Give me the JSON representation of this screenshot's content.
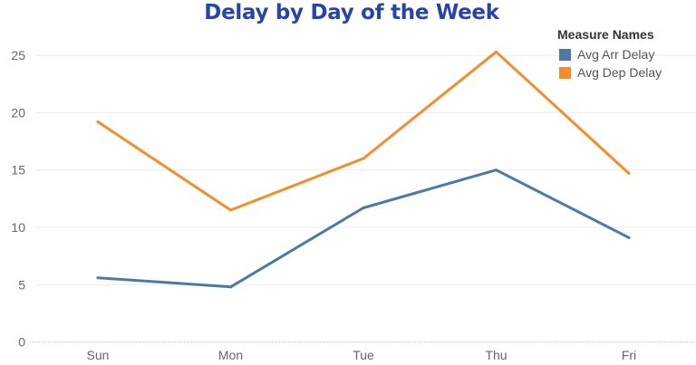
{
  "chart_data": {
    "type": "line",
    "title": "Delay by Day of the Week",
    "xlabel": "",
    "ylabel": "",
    "categories": [
      "Sun",
      "Mon",
      "Tue",
      "Thu",
      "Fri"
    ],
    "ylim": [
      0,
      27
    ],
    "yticks": [
      0,
      5,
      10,
      15,
      20,
      25
    ],
    "grid": true,
    "legend": {
      "title": "Measure Names",
      "position": "top-right"
    },
    "series": [
      {
        "name": "Avg Arr Delay",
        "color": "#4e79a7",
        "values": [
          5.6,
          4.8,
          11.7,
          15.0,
          9.1
        ]
      },
      {
        "name": "Avg Dep Delay",
        "color": "#f28e2b",
        "values": [
          19.2,
          11.5,
          16.0,
          25.3,
          14.7
        ]
      }
    ]
  }
}
